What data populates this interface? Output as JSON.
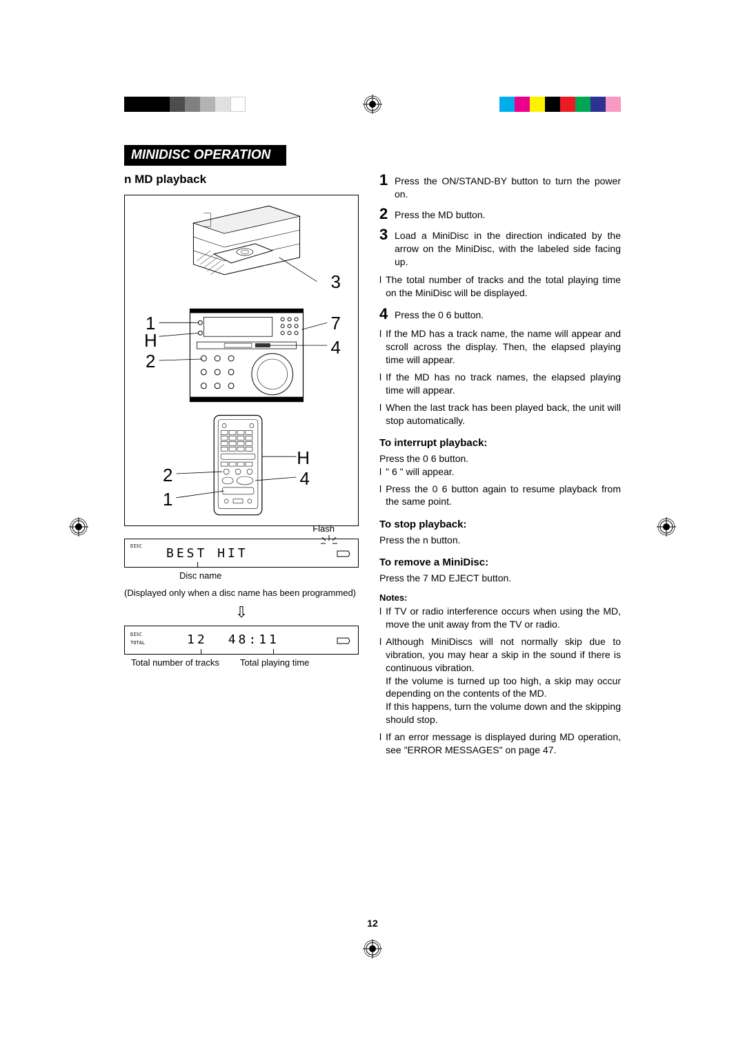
{
  "colorbar_left": [
    "#000000",
    "#000000",
    "#000000",
    "#4d4d4d",
    "#808080",
    "#b3b3b3",
    "#e0e0e0",
    "#ffffff"
  ],
  "colorbar_right": [
    "#00aeef",
    "#ec008c",
    "#fff200",
    "#000000",
    "#ed1c24",
    "#00a651",
    "#2e3192",
    "#f69ac1"
  ],
  "section_title": "MINIDISC OPERATION",
  "subtitle_prefix": "n",
  "subtitle": "MD playback",
  "diagram": {
    "labels": {
      "top_right": "3",
      "left_1": "1",
      "left_H": "H",
      "left_2": "2",
      "right_7": "7",
      "right_4": "4",
      "remote_2": "2",
      "remote_1": "1",
      "remote_H": "H",
      "remote_4": "4"
    }
  },
  "flash_label": "Flash",
  "display1": {
    "tag": "DISC",
    "text": "BEST HIT"
  },
  "display1_caption": "Disc name",
  "display1_note": "(Displayed only when a disc name has been programmed)",
  "display2": {
    "tag1": "DISC",
    "tag2": "TOTAL",
    "tracks": "12",
    "time": "48:11"
  },
  "display2_label_left": "Total number of tracks",
  "display2_label_right": "Total playing time",
  "steps": [
    {
      "n": "1",
      "t": "Press the ON/STAND-BY button to turn the power on."
    },
    {
      "n": "2",
      "t": "Press the MD button."
    },
    {
      "n": "3",
      "t": "Load a MiniDisc in the direction indicated by the arrow on the MiniDisc, with the labeled side facing up."
    }
  ],
  "step3_bullet": "The total number of tracks and the total playing time on the MiniDisc will be displayed.",
  "step4": {
    "n": "4",
    "t": "Press the 0 6  button."
  },
  "step4_bullets": [
    "If the MD has a track name, the name will appear and scroll across the display. Then, the elapsed playing time will appear.",
    "If the MD has no track names, the elapsed playing time will appear.",
    "When the last track has been played back, the unit will stop automatically."
  ],
  "interrupt_heading": "To interrupt playback:",
  "interrupt_text": "Press the 0 6  button.",
  "interrupt_bullets": [
    "\" 6 \" will appear.",
    "Press the 0 6  button again to resume playback from the same point."
  ],
  "stop_heading": "To stop playback:",
  "stop_text": "Press the n button.",
  "remove_heading": "To remove a MiniDisc:",
  "remove_text": "Press the 7 MD EJECT button.",
  "notes_heading": "Notes:",
  "notes": [
    "If TV or radio interference occurs when using the MD, move the unit away from the TV or radio.",
    "Although MiniDiscs will not normally skip due to vibration, you may hear a skip in the sound if there is continuous vibration.\nIf the volume is turned up too high, a skip may occur depending on the contents of the MD.\nIf this happens, turn the volume down and the skipping should stop.",
    "If an error message is displayed during MD operation, see \"ERROR MESSAGES\" on page 47."
  ],
  "page_number": "12"
}
